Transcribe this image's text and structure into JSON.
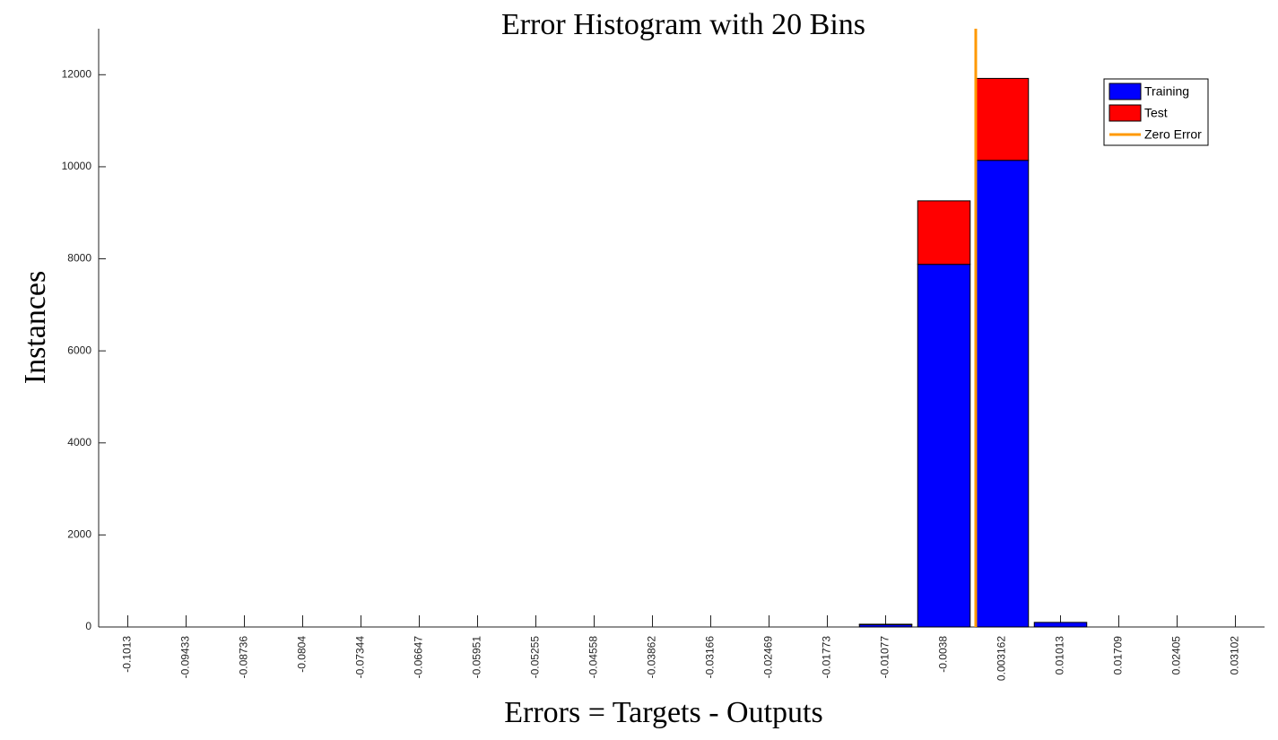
{
  "chart_data": {
    "type": "bar",
    "stacked": true,
    "title": "Error Histogram with 20 Bins",
    "x_label": "Errors = Targets - Outputs",
    "y_label": "Instances",
    "categories": [
      "-0.1013",
      "-0.09433",
      "-0.08736",
      "-0.0804",
      "-0.07344",
      "-0.06647",
      "-0.05951",
      "-0.05255",
      "-0.04558",
      "-0.03862",
      "-0.03166",
      "-0.02469",
      "-0.01773",
      "-0.01077",
      "-0.0038",
      "0.003162",
      "0.01013",
      "0.01709",
      "0.02405",
      "0.03102"
    ],
    "series": [
      {
        "name": "Training",
        "color": "#0000ff",
        "values": [
          0,
          0,
          0,
          0,
          0,
          0,
          0,
          0,
          0,
          0,
          0,
          0,
          0,
          50,
          7880,
          10140,
          100,
          0,
          0,
          0
        ]
      },
      {
        "name": "Test",
        "color": "#ff0000",
        "values": [
          0,
          0,
          0,
          0,
          0,
          0,
          0,
          0,
          0,
          0,
          0,
          0,
          0,
          10,
          1380,
          1780,
          0,
          0,
          0,
          0
        ]
      }
    ],
    "zero_line": {
      "name": "Zero Error",
      "value": 0,
      "color": "#ff9900"
    },
    "ylim": [
      0,
      13000
    ],
    "yticks": [
      0,
      2000,
      4000,
      6000,
      8000,
      10000,
      12000
    ],
    "legend": "upper right"
  }
}
